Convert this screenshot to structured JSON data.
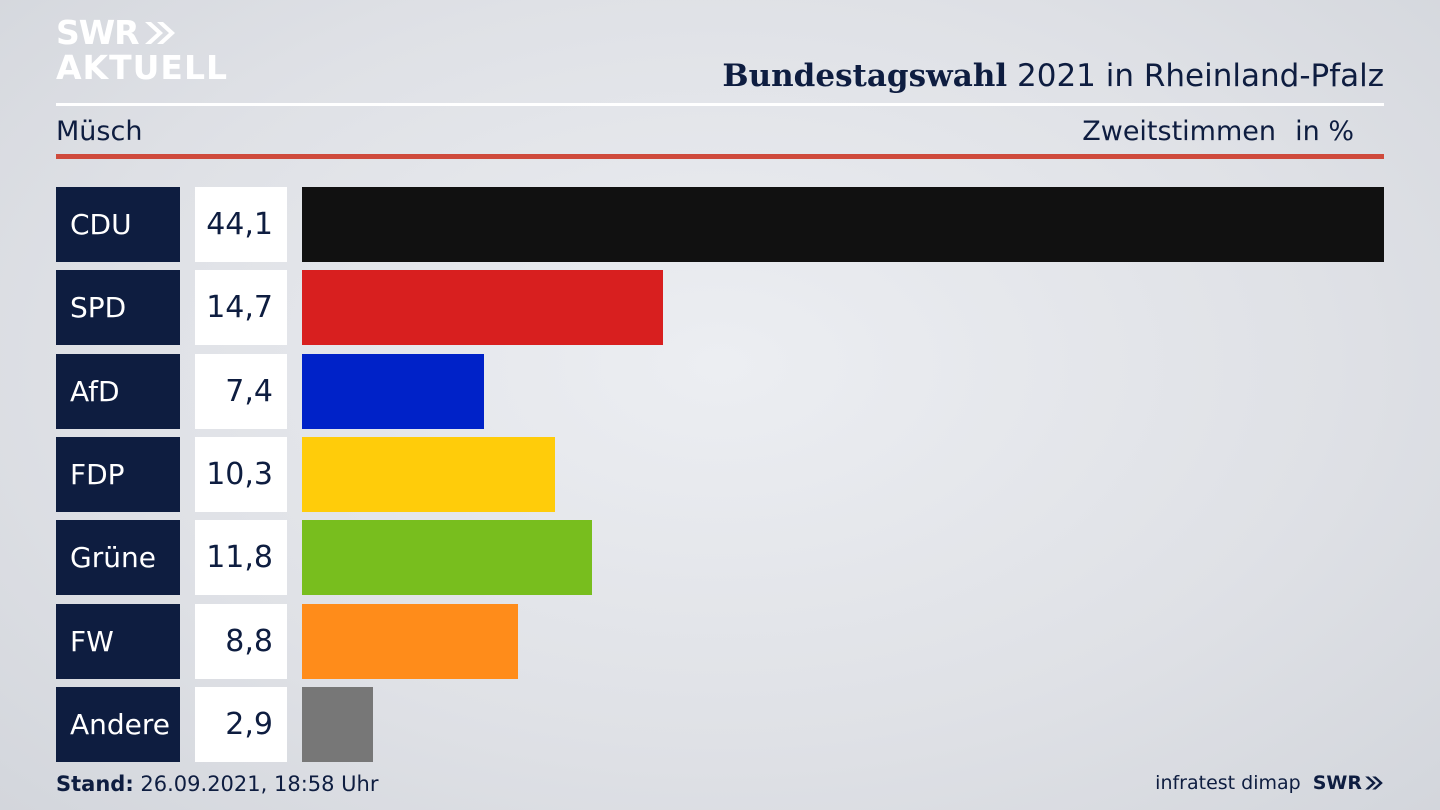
{
  "header": {
    "logo_line1": "SWR",
    "logo_line2": "AKTUELL",
    "title_bold": "Bundestagswahl",
    "title_rest": " 2021 in Rheinland-Pfalz",
    "region": "Müsch",
    "metric": "Zweitstimmen",
    "unit": "in %"
  },
  "chart_data": {
    "type": "bar",
    "orientation": "horizontal",
    "categories": [
      "CDU",
      "SPD",
      "AfD",
      "FDP",
      "Grüne",
      "FW",
      "Andere"
    ],
    "values": [
      44.1,
      14.7,
      7.4,
      10.3,
      11.8,
      8.8,
      2.9
    ],
    "value_labels": [
      "44,1",
      "14,7",
      "7,4",
      "10,3",
      "11,8",
      "8,8",
      "2,9"
    ],
    "colors": [
      "#111111",
      "#d81f1f",
      "#0022c8",
      "#ffcc0a",
      "#78be1e",
      "#ff8c1a",
      "#777777"
    ],
    "xlim": [
      0,
      44.1
    ]
  },
  "footer": {
    "stand_label": "Stand:",
    "stand_value": " 26.09.2021, 18:58 Uhr",
    "source": "infratest dimap",
    "brand": "SWR"
  }
}
